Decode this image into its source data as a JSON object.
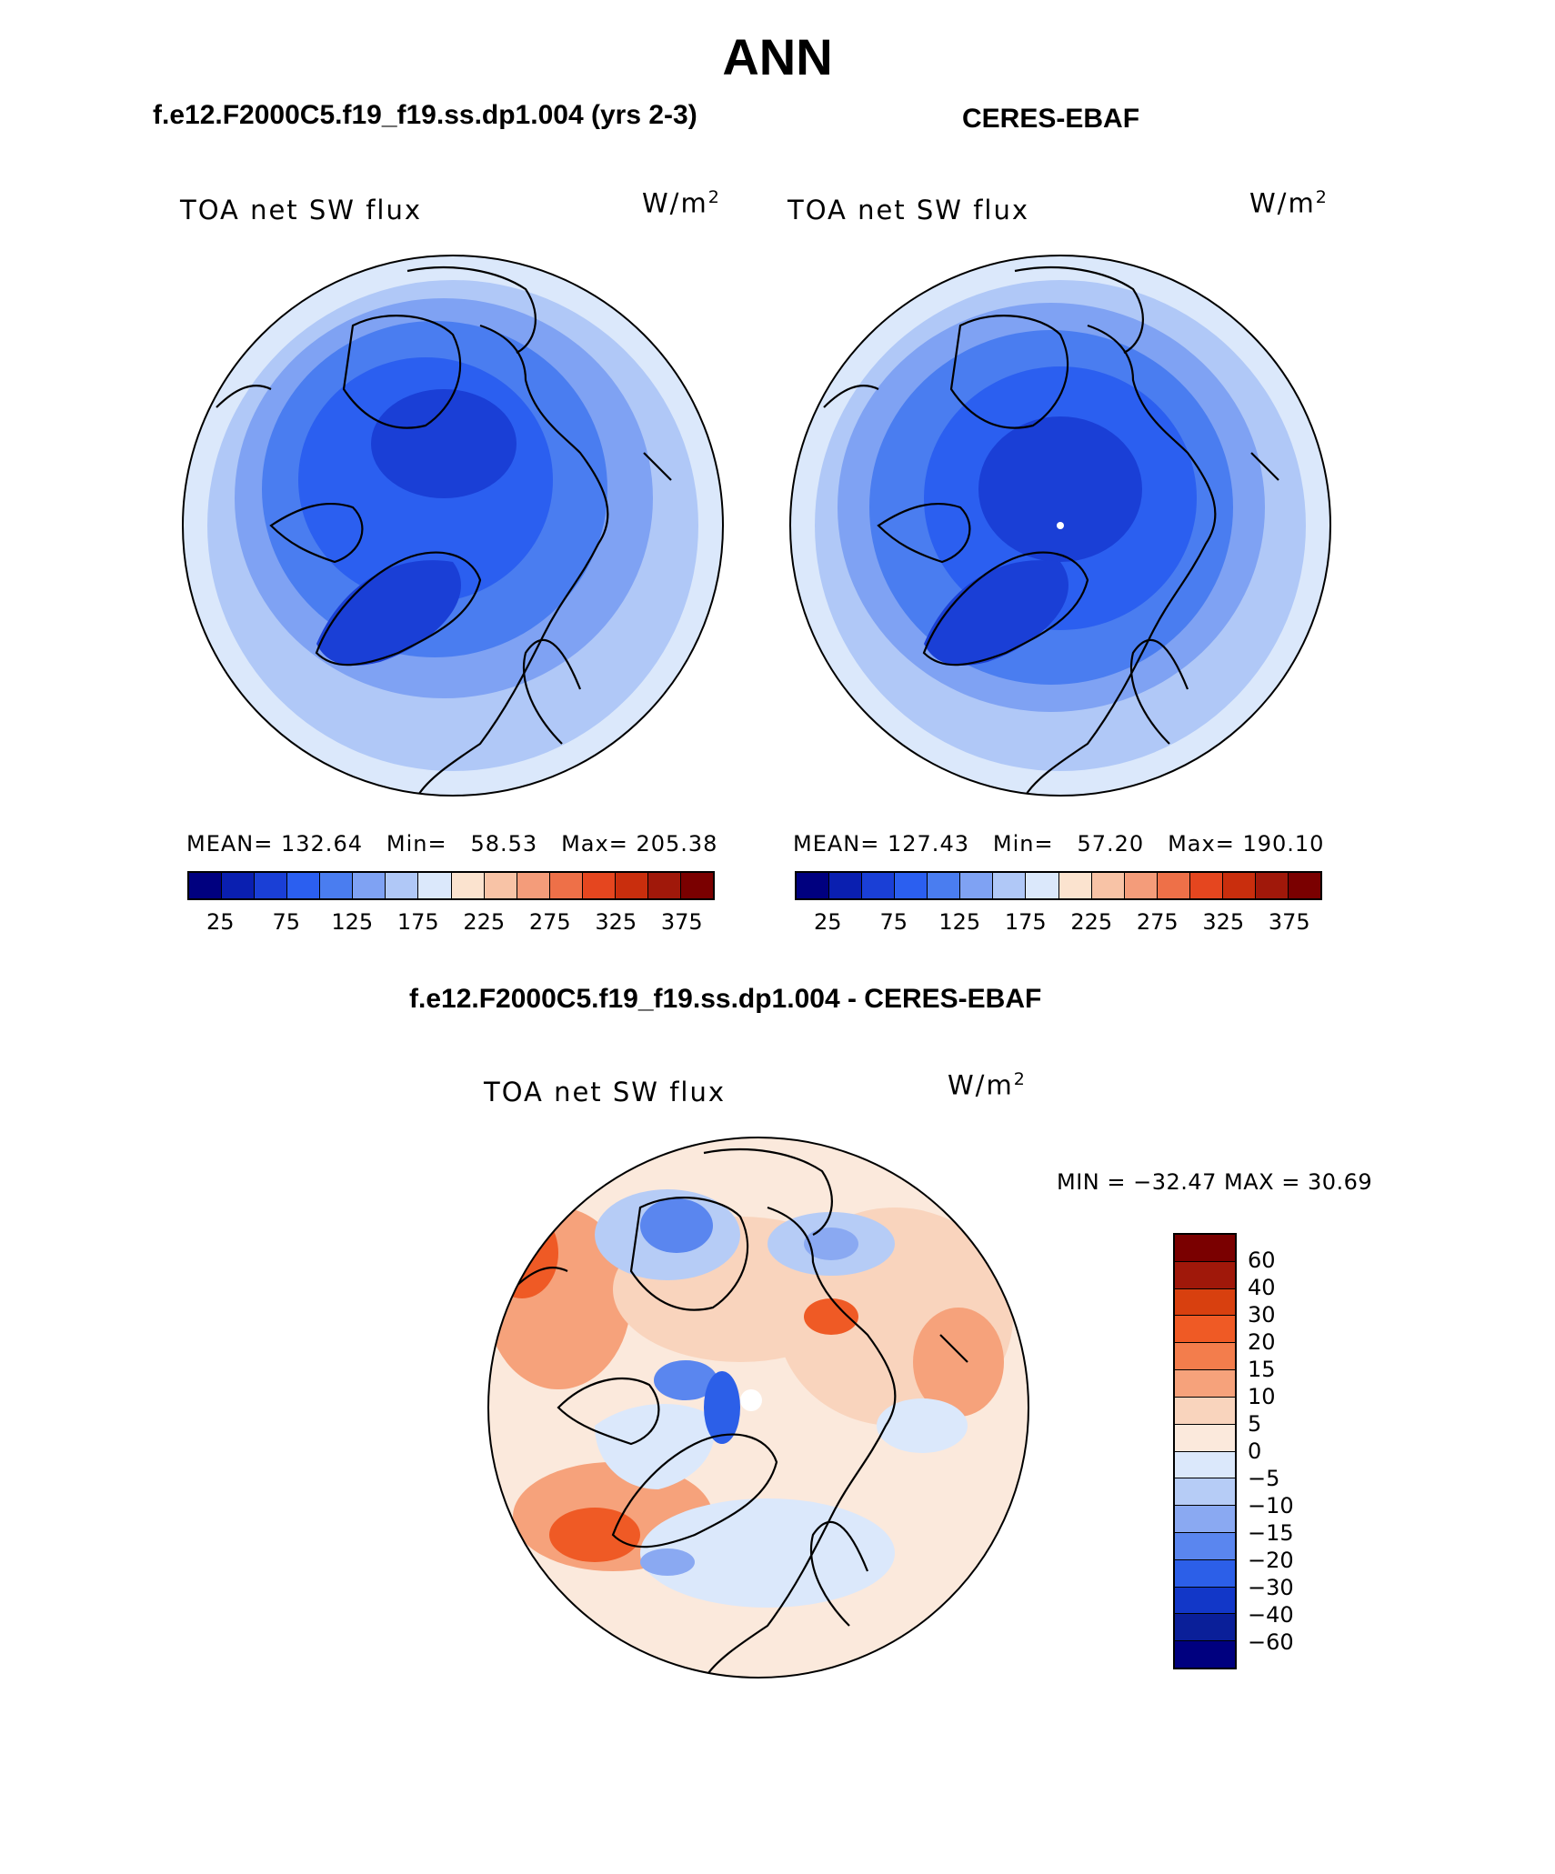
{
  "title": "ANN",
  "panels": {
    "model": {
      "title": "f.e12.F2000C5.f19_f19.ss.dp1.004 (yrs 2-3)",
      "variable": "TOA net SW flux",
      "units_base": "W/m",
      "units_exp": "2",
      "stats": {
        "mean_label": "MEAN=",
        "mean": "132.64",
        "min_label": "Min=",
        "min": "58.53",
        "max_label": "Max=",
        "max": "205.38"
      }
    },
    "obs": {
      "title": "CERES-EBAF",
      "variable": "TOA net SW flux",
      "units_base": "W/m",
      "units_exp": "2",
      "stats": {
        "mean_label": "MEAN=",
        "mean": "127.43",
        "min_label": "Min=",
        "min": "57.20",
        "max_label": "Max=",
        "max": "190.10"
      }
    },
    "diff": {
      "title": "f.e12.F2000C5.f19_f19.ss.dp1.004 - CERES-EBAF",
      "variable": "TOA net SW flux",
      "units_base": "W/m",
      "units_exp": "2",
      "minmax": "MIN = −32.47 MAX =  30.69"
    }
  },
  "colorbar_abs": {
    "ticks": [
      "25",
      "75",
      "125",
      "175",
      "225",
      "275",
      "325",
      "375"
    ],
    "colors": [
      "#00007f",
      "#0a1fb0",
      "#1a3fd6",
      "#2b5ff0",
      "#4a7df0",
      "#7fa2f3",
      "#b0c8f7",
      "#dbe8fb",
      "#fbe3cf",
      "#f8c3a6",
      "#f49c7a",
      "#ee7048",
      "#e5461f",
      "#c92e0d",
      "#a0180a",
      "#7a0000"
    ]
  },
  "colorbar_diff": {
    "ticks": [
      "60",
      "40",
      "30",
      "20",
      "15",
      "10",
      "5",
      "0",
      "−5",
      "−10",
      "−15",
      "−20",
      "−30",
      "−40",
      "−60"
    ],
    "colors": [
      "#7a0000",
      "#a0180a",
      "#d8400f",
      "#ef5a25",
      "#f37d4c",
      "#f6a27b",
      "#f9d4bd",
      "#fbe9dc",
      "#dbe8fb",
      "#b6ccf6",
      "#8aa9f2",
      "#5a86ef",
      "#2c5fe8",
      "#1237c8",
      "#0a1f99",
      "#00007f"
    ]
  }
}
